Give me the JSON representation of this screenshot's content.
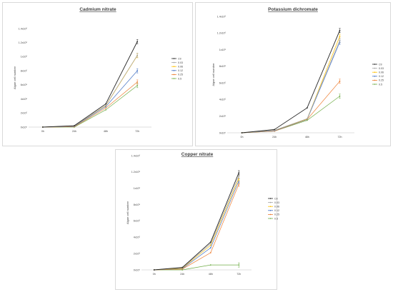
{
  "chart_data": [
    {
      "type": "line",
      "title": "Cadmium nitrate",
      "xlabel": "",
      "ylabel": "Algae cell number",
      "categories": [
        "0h",
        "24h",
        "48h",
        "72h"
      ],
      "ylim": [
        0,
        1400000
      ],
      "y_ticks": [
        "0x10⁰",
        "2x10⁵",
        "4x10⁵",
        "6x10⁵",
        "8x10⁵",
        "1x10⁶",
        "1.2x10⁶",
        "1.4x10⁶"
      ],
      "grid": false,
      "legend": "right",
      "series": [
        {
          "name": "Ctr",
          "values": [
            0,
            20000,
            330000,
            1215000
          ]
        },
        {
          "name": "0.03",
          "values": [
            0,
            15000,
            310000,
            1020000
          ]
        },
        {
          "name": "0.06",
          "values": [
            0,
            15000,
            305000,
            1015000
          ]
        },
        {
          "name": "0.12",
          "values": [
            0,
            10000,
            290000,
            800000
          ]
        },
        {
          "name": "0.25",
          "values": [
            0,
            5000,
            270000,
            640000
          ]
        },
        {
          "name": "0.5",
          "values": [
            0,
            0,
            245000,
            590000
          ]
        }
      ]
    },
    {
      "type": "line",
      "title": "Potassium dichromate",
      "xlabel": "",
      "ylabel": "Algae cell number",
      "categories": [
        "0h",
        "24h",
        "48h",
        "72h"
      ],
      "ylim": [
        0,
        1400000
      ],
      "y_ticks": [
        "0x10⁰",
        "2x10⁵",
        "4x10⁵",
        "6x10⁵",
        "8x10⁵",
        "1x10⁶",
        "1.2x10⁶",
        "1.4x10⁶"
      ],
      "grid": false,
      "legend": "right",
      "series": [
        {
          "name": "Ctr",
          "values": [
            0,
            40000,
            300000,
            1230000
          ]
        },
        {
          "name": "0.03",
          "values": [
            0,
            30000,
            170000,
            1110000
          ]
        },
        {
          "name": "0.06",
          "values": [
            0,
            30000,
            165000,
            1160000
          ]
        },
        {
          "name": "0.12",
          "values": [
            0,
            25000,
            160000,
            1090000
          ]
        },
        {
          "name": "0.25",
          "values": [
            0,
            20000,
            160000,
            620000
          ]
        },
        {
          "name": "0.5",
          "values": [
            0,
            20000,
            150000,
            440000
          ]
        }
      ]
    },
    {
      "type": "line",
      "title": "Copper nitrate",
      "xlabel": "",
      "ylabel": "Algae cell number",
      "categories": [
        "0h",
        "24h",
        "48h",
        "72h"
      ],
      "ylim": [
        0,
        1400000
      ],
      "y_ticks": [
        "0x10⁰",
        "2x10⁵",
        "4x10⁵",
        "6x10⁵",
        "8x10⁵",
        "1x10⁶",
        "1.2x10⁶",
        "1.4x10⁶"
      ],
      "grid": false,
      "legend": "right",
      "series": [
        {
          "name": "Ctr",
          "values": [
            0,
            30000,
            340000,
            1190000
          ]
        },
        {
          "name": "0.03",
          "values": [
            0,
            25000,
            320000,
            1150000
          ]
        },
        {
          "name": "0.06",
          "values": [
            0,
            20000,
            300000,
            1120000
          ]
        },
        {
          "name": "0.12",
          "values": [
            0,
            15000,
            270000,
            1090000
          ]
        },
        {
          "name": "0.25",
          "values": [
            0,
            10000,
            210000,
            1050000
          ]
        },
        {
          "name": "0.5",
          "values": [
            0,
            0,
            60000,
            60000
          ]
        }
      ]
    }
  ],
  "colors": {
    "series": [
      "#262626",
      "#a6a6a6",
      "#ffc000",
      "#4472c4",
      "#ed7d31",
      "#70ad47"
    ],
    "axis": "#bfbfbf",
    "text": "#404040"
  }
}
